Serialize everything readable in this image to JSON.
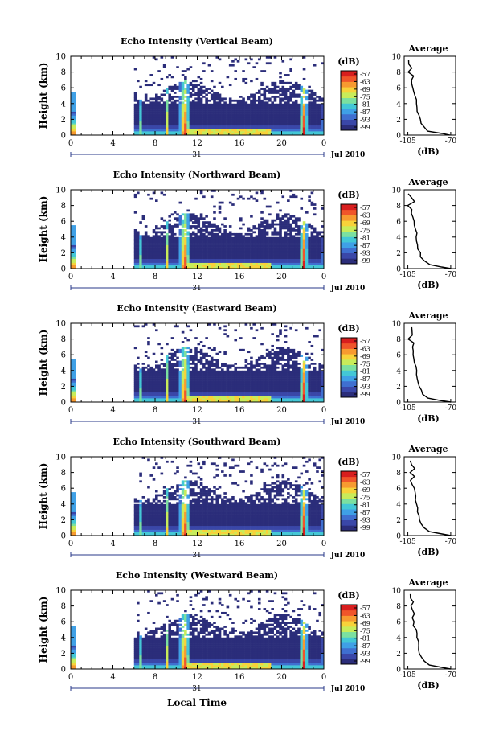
{
  "chart_data": [
    {
      "type": "heatmap",
      "title": "Echo Intensity (Vertical Beam)",
      "ylabel": "Height (km)",
      "y_ticks": [
        "0",
        "2",
        "4",
        "6",
        "8",
        "10"
      ],
      "x_ticks": [
        "0",
        "4",
        "8",
        "12",
        "16",
        "20",
        "0"
      ],
      "date_day": "31",
      "date_label": "Jul 2010",
      "colorbar_unit": "(dB)",
      "colorbar_ticks": [
        "-57",
        "-63",
        "-69",
        "-75",
        "-81",
        "-87",
        "-93",
        "-99"
      ],
      "profile": {
        "title": "Average",
        "xlabel": "(dB)",
        "x_ticks": [
          "-105",
          "-70"
        ],
        "y_ticks": [
          "0",
          "2",
          "4",
          "6",
          "8",
          "10"
        ]
      }
    },
    {
      "type": "heatmap",
      "title": "Echo Intensity (Northward Beam)",
      "ylabel": "Height (km)",
      "y_ticks": [
        "0",
        "2",
        "4",
        "6",
        "8",
        "10"
      ],
      "x_ticks": [
        "0",
        "4",
        "8",
        "12",
        "16",
        "20",
        "0"
      ],
      "date_day": "31",
      "date_label": "Jul 2010",
      "colorbar_unit": "(dB)",
      "colorbar_ticks": [
        "-57",
        "-63",
        "-69",
        "-75",
        "-81",
        "-87",
        "-93",
        "-99"
      ],
      "profile": {
        "title": "Average",
        "xlabel": "(dB)",
        "x_ticks": [
          "-105",
          "-70"
        ],
        "y_ticks": [
          "0",
          "2",
          "4",
          "6",
          "8",
          "10"
        ]
      }
    },
    {
      "type": "heatmap",
      "title": "Echo Intensity (Eastward Beam)",
      "ylabel": "Height (km)",
      "y_ticks": [
        "0",
        "2",
        "4",
        "6",
        "8",
        "10"
      ],
      "x_ticks": [
        "0",
        "4",
        "8",
        "12",
        "16",
        "20",
        "0"
      ],
      "date_day": "31",
      "date_label": "Jul 2010",
      "colorbar_unit": "(dB)",
      "colorbar_ticks": [
        "-57",
        "-63",
        "-69",
        "-75",
        "-81",
        "-87",
        "-93",
        "-99"
      ],
      "profile": {
        "title": "Average",
        "xlabel": "(dB)",
        "x_ticks": [
          "-105",
          "-70"
        ],
        "y_ticks": [
          "0",
          "2",
          "4",
          "6",
          "8",
          "10"
        ]
      }
    },
    {
      "type": "heatmap",
      "title": "Echo Intensity (Southward Beam)",
      "ylabel": "Height (km)",
      "y_ticks": [
        "0",
        "2",
        "4",
        "6",
        "8",
        "10"
      ],
      "x_ticks": [
        "0",
        "4",
        "8",
        "12",
        "16",
        "20",
        "0"
      ],
      "date_day": "31",
      "date_label": "Jul 2010",
      "colorbar_unit": "(dB)",
      "colorbar_ticks": [
        "-57",
        "-63",
        "-69",
        "-75",
        "-81",
        "-87",
        "-93",
        "-99"
      ],
      "profile": {
        "title": "Average",
        "xlabel": "(dB)",
        "x_ticks": [
          "-105",
          "-70"
        ],
        "y_ticks": [
          "0",
          "2",
          "4",
          "6",
          "8",
          "10"
        ]
      }
    },
    {
      "type": "heatmap",
      "title": "Echo Intensity (Westward Beam)",
      "ylabel": "Height (km)",
      "y_ticks": [
        "0",
        "2",
        "4",
        "6",
        "8",
        "10"
      ],
      "x_ticks": [
        "0",
        "4",
        "8",
        "12",
        "16",
        "20",
        "0"
      ],
      "date_day": "31",
      "date_label": "Jul 2010",
      "colorbar_unit": "(dB)",
      "colorbar_ticks": [
        "-57",
        "-63",
        "-69",
        "-75",
        "-81",
        "-87",
        "-93",
        "-99"
      ],
      "profile": {
        "title": "Average",
        "xlabel": "(dB)",
        "x_ticks": [
          "-105",
          "-70"
        ],
        "y_ticks": [
          "0",
          "2",
          "4",
          "6",
          "8",
          "10"
        ]
      },
      "xlabel": "Local Time"
    }
  ],
  "colors": {
    "scale": [
      "#2b2d7a",
      "#3a47a8",
      "#3f6fd0",
      "#3fa0e6",
      "#43c7d6",
      "#7be0a0",
      "#c8ec5a",
      "#f7d23a",
      "#f79a30",
      "#f0552a",
      "#d81e1e"
    ]
  },
  "average_profile": {
    "height_km": [
      0,
      0.2,
      0.5,
      1,
      1.5,
      2,
      2.5,
      3,
      3.5,
      4,
      4.5,
      5,
      5.5,
      6,
      6.5,
      7,
      7.5,
      8,
      8.5,
      9,
      9.5
    ],
    "intensity_db": [
      -70,
      -78,
      -88,
      -92,
      -94,
      -95,
      -96,
      -97,
      -97,
      -98,
      -98,
      -99,
      -100,
      -100,
      -101,
      -102,
      -102,
      -103,
      -101,
      -103,
      -104
    ]
  }
}
